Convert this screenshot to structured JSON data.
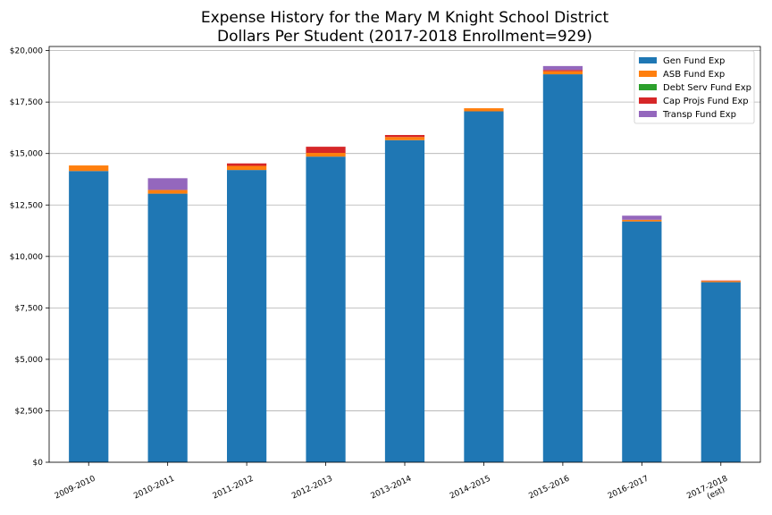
{
  "chart_data": {
    "type": "bar",
    "stacked": true,
    "title_lines": [
      "Expense History for the Mary M Knight School District",
      "Dollars Per Student (2017-2018 Enrollment=929)"
    ],
    "xlabel": "",
    "ylabel": "",
    "categories": [
      [
        "2009-2010"
      ],
      [
        "2010-2011"
      ],
      [
        "2011-2012"
      ],
      [
        "2012-2013"
      ],
      [
        "2013-2014"
      ],
      [
        "2014-2015"
      ],
      [
        "2015-2016"
      ],
      [
        "2016-2017"
      ],
      [
        "2017-2018",
        "(est)"
      ]
    ],
    "y_ticks": [
      {
        "value": 0,
        "label": "$0"
      },
      {
        "value": 2500,
        "label": "$2,500"
      },
      {
        "value": 5000,
        "label": "$5,000"
      },
      {
        "value": 7500,
        "label": "$7,500"
      },
      {
        "value": 10000,
        "label": "$10,000"
      },
      {
        "value": 12500,
        "label": "$12,500"
      },
      {
        "value": 15000,
        "label": "$15,000"
      },
      {
        "value": 17500,
        "label": "$17,500"
      },
      {
        "value": 20000,
        "label": "$20,000"
      }
    ],
    "ylim": [
      0,
      20200
    ],
    "grid": "horizontal",
    "legend_position": "top-right",
    "series": [
      {
        "name": "Gen Fund Exp",
        "color": "#1f77b4",
        "values": [
          14150,
          13050,
          14200,
          14850,
          15650,
          17050,
          18850,
          11700,
          8750
        ]
      },
      {
        "name": "ASB Fund Exp",
        "color": "#ff7f0e",
        "values": [
          270,
          180,
          200,
          180,
          150,
          150,
          150,
          80,
          60
        ]
      },
      {
        "name": "Debt Serv Fund Exp",
        "color": "#2ca02c",
        "values": [
          0,
          0,
          0,
          0,
          0,
          0,
          0,
          0,
          0
        ]
      },
      {
        "name": "Cap Projs Fund Exp",
        "color": "#d62728",
        "values": [
          0,
          0,
          120,
          300,
          100,
          0,
          60,
          0,
          20
        ]
      },
      {
        "name": "Transp Fund Exp",
        "color": "#9467bd",
        "values": [
          0,
          570,
          0,
          0,
          0,
          0,
          190,
          200,
          0
        ]
      }
    ]
  }
}
